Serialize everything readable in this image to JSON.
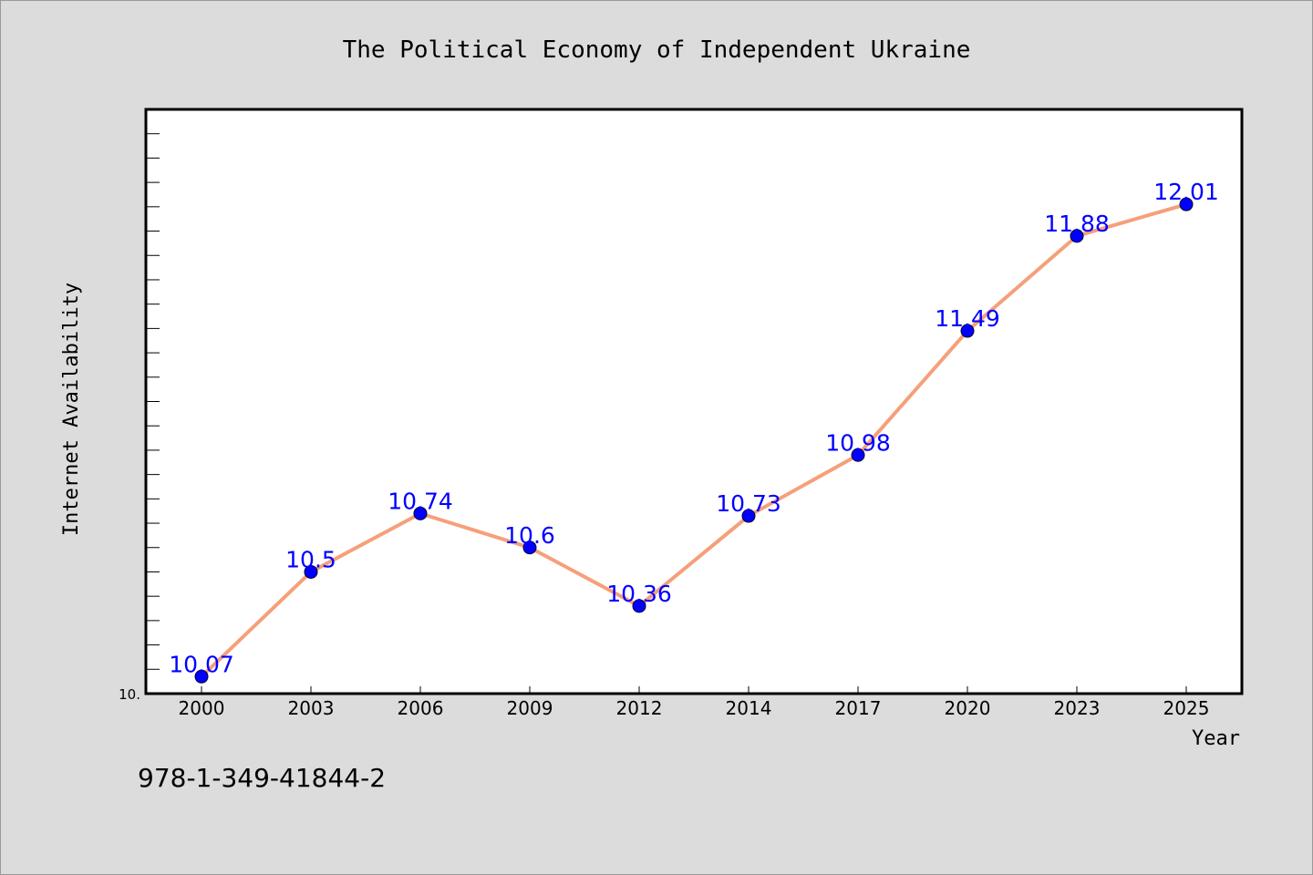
{
  "chart_data": {
    "type": "line",
    "title": "The Political Economy of Independent Ukraine",
    "xlabel": "Year",
    "ylabel": "Internet Availability",
    "categories": [
      "2000",
      "2003",
      "2006",
      "2009",
      "2012",
      "2014",
      "2017",
      "2020",
      "2023",
      "2025"
    ],
    "series": [
      {
        "values": [
          10.07,
          10.5,
          10.74,
          10.6,
          10.36,
          10.73,
          10.98,
          11.49,
          11.88,
          12.01
        ],
        "labels": [
          "10.07",
          "10.5",
          "10.74",
          "10.6",
          "10.36",
          "10.73",
          "10.98",
          "11.49",
          "11.88",
          "12.01"
        ]
      }
    ],
    "ylim": [
      10.0,
      12.4
    ],
    "y_tick_label": "10.",
    "grid": false,
    "legend": "none"
  },
  "footer": {
    "isbn": "978-1-349-41844-2"
  },
  "colors": {
    "line": "#f5a07a",
    "marker": "#0000ff",
    "label": "#0000ff",
    "background": "#dcdcdc",
    "plot_area": "#ffffff"
  }
}
